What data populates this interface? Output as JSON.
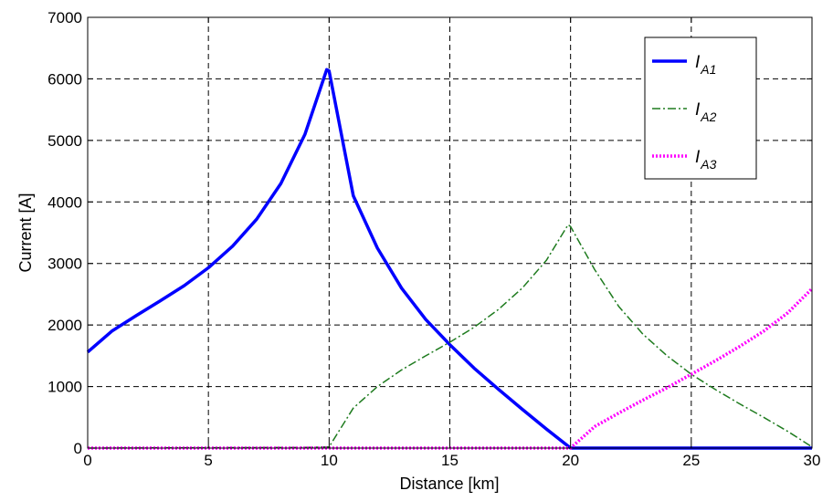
{
  "chart_data": {
    "type": "line",
    "xlabel": "Distance [km]",
    "ylabel": "Current [A]",
    "xlim": [
      0,
      30
    ],
    "ylim": [
      0,
      7000
    ],
    "xticks": [
      0,
      5,
      10,
      15,
      20,
      25,
      30
    ],
    "yticks": [
      0,
      1000,
      2000,
      3000,
      4000,
      5000,
      6000,
      7000
    ],
    "grid": true,
    "grid_style": "dashed",
    "legend_position": "top-right",
    "series": [
      {
        "name": "I_A1",
        "legend_main": "I",
        "legend_sub": "A1",
        "color": "#0000ff",
        "style": "solid",
        "points": [
          [
            0,
            1560
          ],
          [
            1,
            1900
          ],
          [
            2,
            2150
          ],
          [
            3,
            2390
          ],
          [
            4,
            2640
          ],
          [
            5,
            2930
          ],
          [
            6,
            3280
          ],
          [
            7,
            3720
          ],
          [
            8,
            4300
          ],
          [
            9,
            5100
          ],
          [
            9.9,
            6150
          ],
          [
            10,
            6130
          ],
          [
            11,
            4100
          ],
          [
            12,
            3250
          ],
          [
            13,
            2600
          ],
          [
            14,
            2090
          ],
          [
            15,
            1680
          ],
          [
            16,
            1300
          ],
          [
            17,
            960
          ],
          [
            18,
            630
          ],
          [
            19,
            310
          ],
          [
            20,
            0
          ],
          [
            25,
            0
          ],
          [
            30,
            0
          ]
        ]
      },
      {
        "name": "I_A2",
        "legend_main": "I",
        "legend_sub": "A2",
        "color": "#1e7b1e",
        "style": "dash-dot",
        "points": [
          [
            0,
            0
          ],
          [
            9,
            10
          ],
          [
            10,
            20
          ],
          [
            11,
            650
          ],
          [
            12,
            1000
          ],
          [
            13,
            1270
          ],
          [
            14,
            1500
          ],
          [
            15,
            1720
          ],
          [
            16,
            1960
          ],
          [
            17,
            2250
          ],
          [
            18,
            2600
          ],
          [
            19,
            3050
          ],
          [
            19.9,
            3630
          ],
          [
            20,
            3600
          ],
          [
            21,
            2900
          ],
          [
            22,
            2300
          ],
          [
            23,
            1850
          ],
          [
            24,
            1500
          ],
          [
            25,
            1200
          ],
          [
            26,
            950
          ],
          [
            27,
            720
          ],
          [
            28,
            500
          ],
          [
            29,
            270
          ],
          [
            30,
            20
          ]
        ]
      },
      {
        "name": "I_A3",
        "legend_main": "I",
        "legend_sub": "A3",
        "color": "#ff00ff",
        "style": "dotted",
        "points": [
          [
            0,
            0
          ],
          [
            20,
            0
          ],
          [
            21,
            350
          ],
          [
            22,
            570
          ],
          [
            23,
            780
          ],
          [
            24,
            980
          ],
          [
            25,
            1200
          ],
          [
            26,
            1420
          ],
          [
            27,
            1650
          ],
          [
            28,
            1900
          ],
          [
            29,
            2200
          ],
          [
            30,
            2590
          ]
        ]
      }
    ]
  }
}
